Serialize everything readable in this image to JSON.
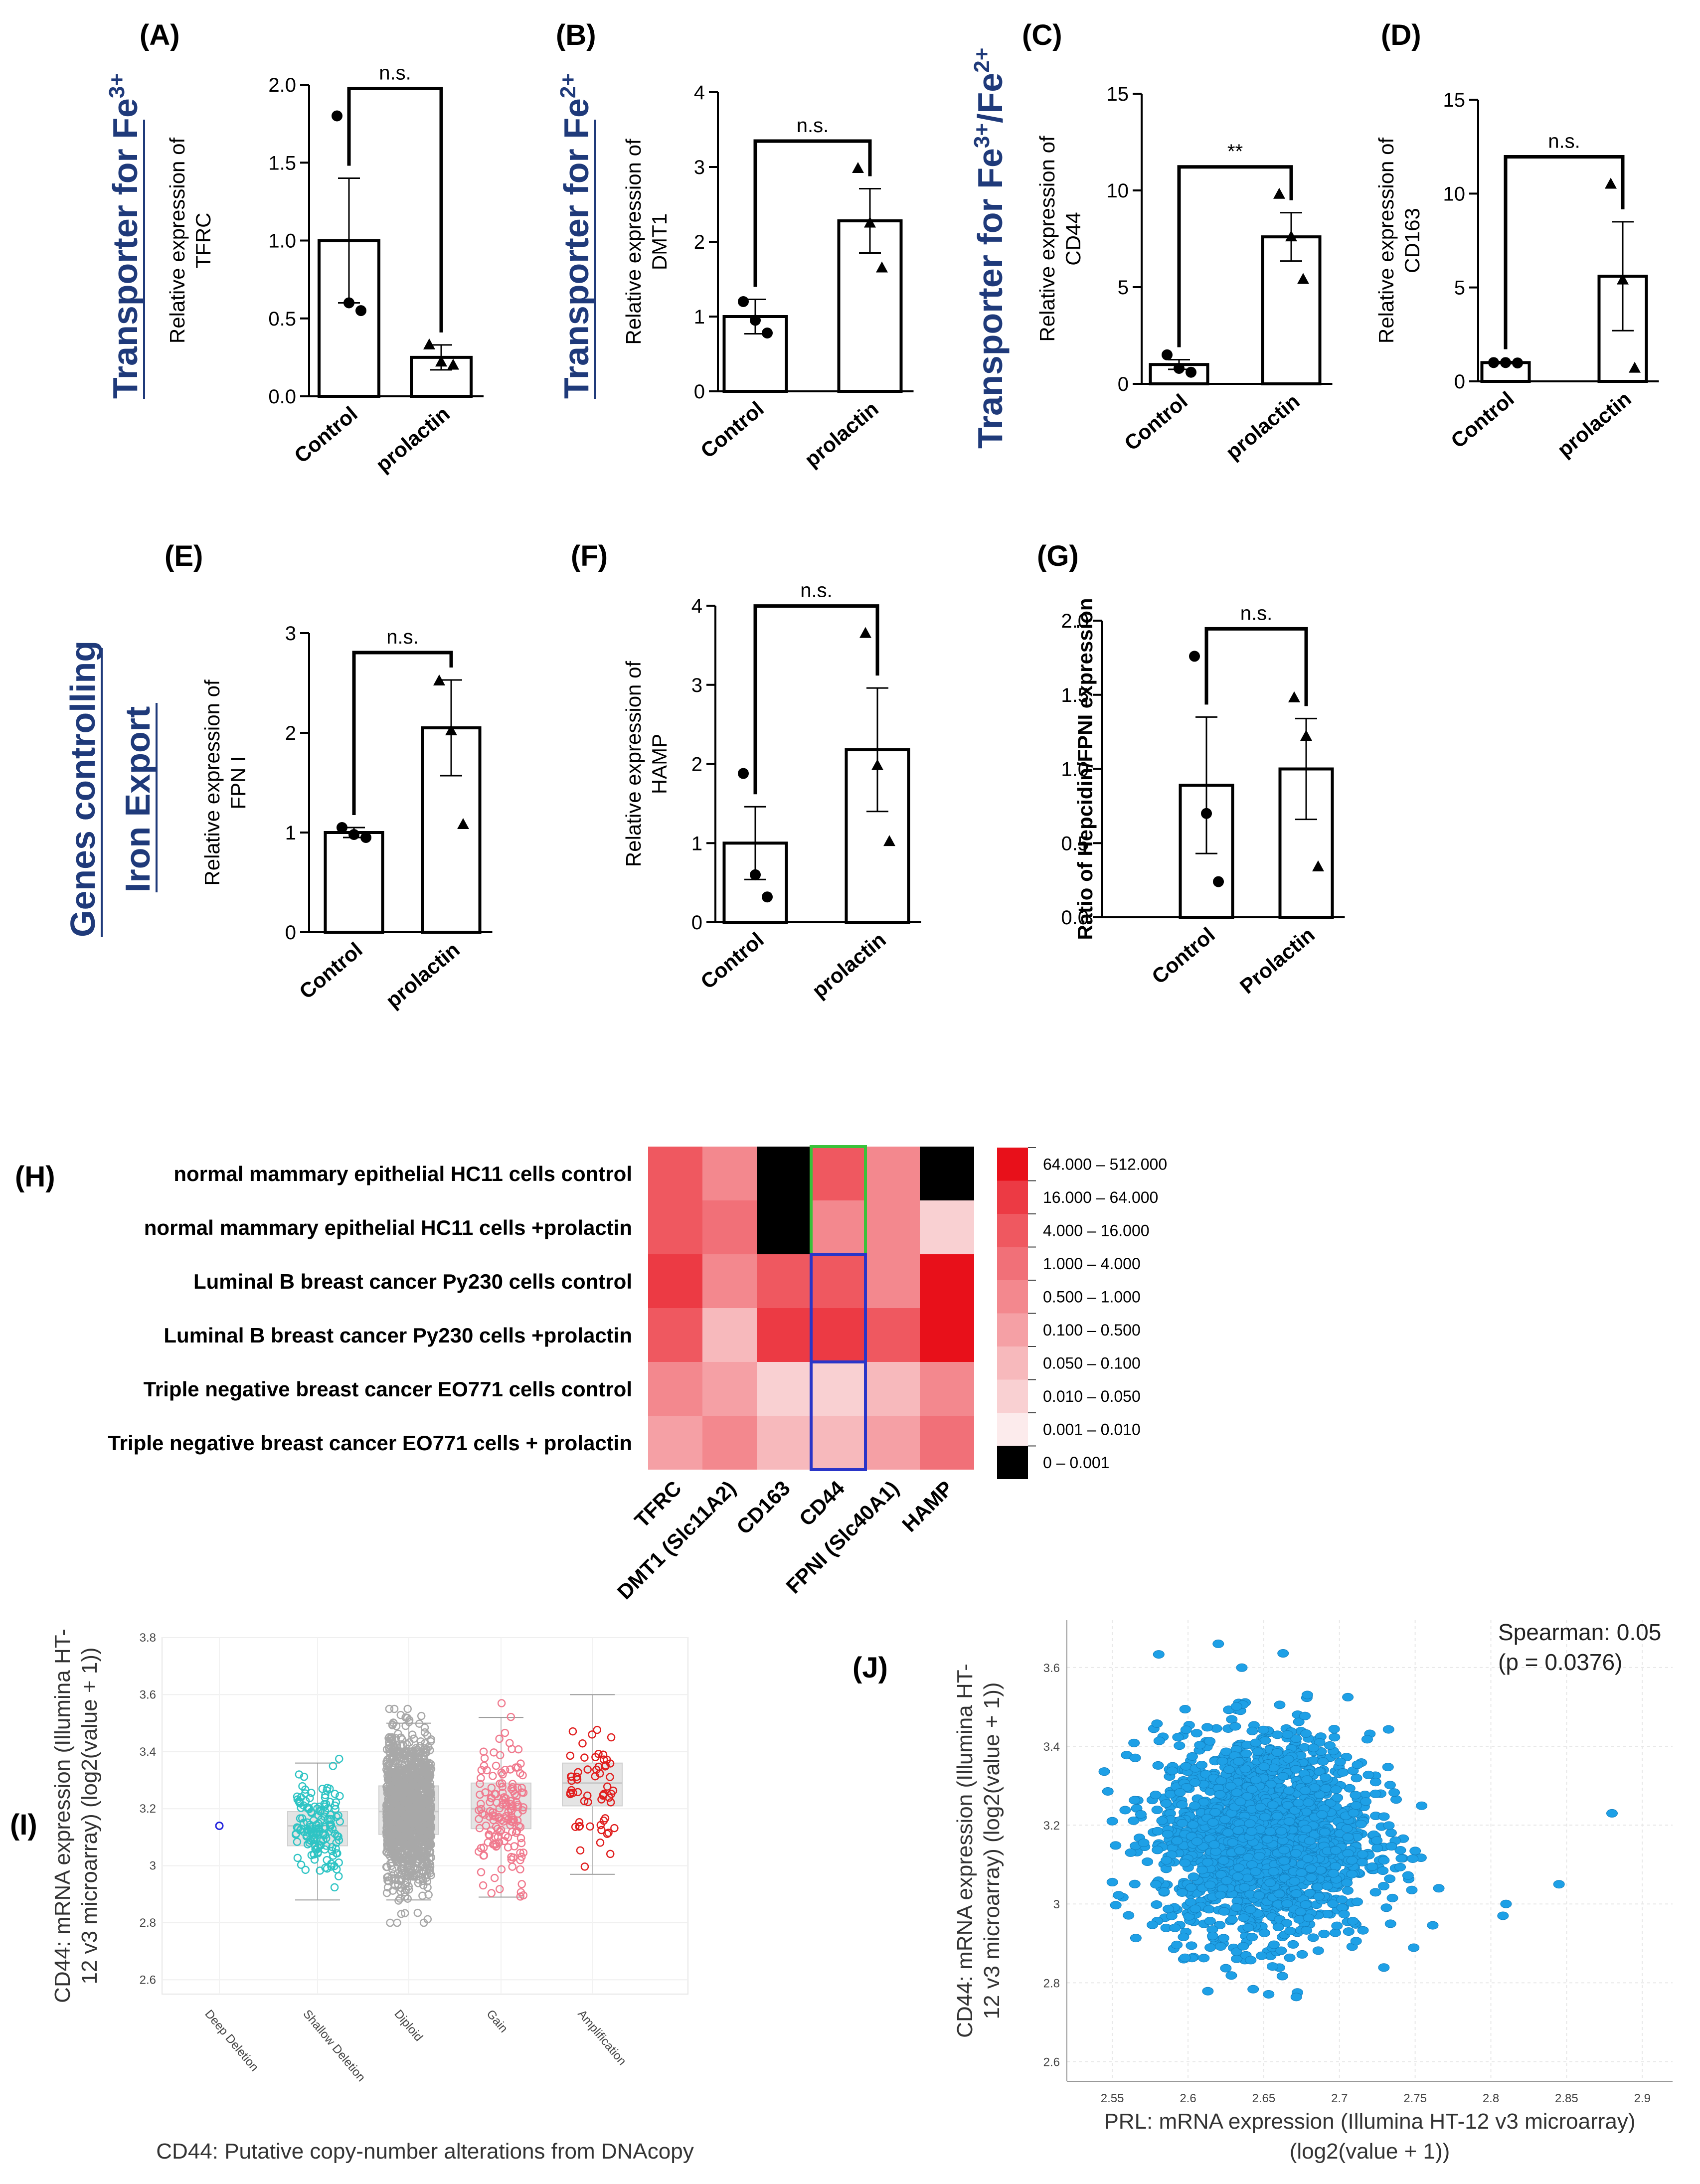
{
  "group_labels": {
    "fe3": "Transporter for Fe",
    "fe3_sup": "3+",
    "fe2": "Transporter for Fe",
    "fe2_sup": "2+",
    "fe3fe2": "Transporter for Fe",
    "fe3fe2_sup1": "3+",
    "fe3fe2_mid": "/Fe",
    "fe3fe2_sup2": "2+",
    "export_line1": "Genes controlling",
    "export_line2": "Iron Export"
  },
  "chart_data": [
    {
      "id": "A",
      "type": "bar",
      "panel_label": "(A)",
      "ylabel_line1": "Relative expression of",
      "ylabel_line2": "TFRC",
      "categories": [
        "Control",
        "prolactin"
      ],
      "values": [
        1.0,
        0.25
      ],
      "sem": [
        0.4,
        0.08
      ],
      "points": [
        [
          1.8,
          0.6,
          0.55
        ],
        [
          0.33,
          0.22,
          0.2
        ]
      ],
      "ylim": [
        0,
        2.0
      ],
      "yticks": [
        0.0,
        0.5,
        1.0,
        1.5,
        2.0
      ],
      "tick_labels": [
        "0.0",
        "0.5",
        "1.0",
        "1.5",
        "2.0"
      ],
      "significance": "n.s."
    },
    {
      "id": "B",
      "type": "bar",
      "panel_label": "(B)",
      "ylabel_line1": "Relative expression of",
      "ylabel_line2": "DMT1",
      "categories": [
        "Control",
        "prolactin"
      ],
      "values": [
        1.0,
        2.28
      ],
      "sem": [
        0.23,
        0.43
      ],
      "points": [
        [
          1.2,
          0.95,
          0.78
        ],
        [
          2.98,
          2.25,
          1.65
        ]
      ],
      "ylim": [
        0,
        4
      ],
      "yticks": [
        0,
        1,
        2,
        3,
        4
      ],
      "tick_labels": [
        "0",
        "1",
        "2",
        "3",
        "4"
      ],
      "significance": "n.s."
    },
    {
      "id": "C",
      "type": "bar",
      "panel_label": "(C)",
      "ylabel_line1": "Relative expression of",
      "ylabel_line2": "CD44",
      "categories": [
        "Control",
        "prolactin"
      ],
      "values": [
        1.0,
        7.6
      ],
      "sem": [
        0.25,
        1.25
      ],
      "points": [
        [
          1.5,
          0.8,
          0.6
        ],
        [
          9.8,
          7.6,
          5.4
        ]
      ],
      "ylim": [
        0,
        15
      ],
      "yticks": [
        0,
        5,
        10,
        15
      ],
      "tick_labels": [
        "0",
        "5",
        "10",
        "15"
      ],
      "significance": "**"
    },
    {
      "id": "D",
      "type": "bar",
      "panel_label": "(D)",
      "ylabel_line1": "Relative expression of",
      "ylabel_line2": "CD163",
      "categories": [
        "Control",
        "prolactin"
      ],
      "values": [
        1.0,
        5.6
      ],
      "sem": [
        0.05,
        2.9
      ],
      "points": [
        [
          1.0,
          1.0,
          0.98
        ],
        [
          10.5,
          5.4,
          0.7
        ]
      ],
      "ylim": [
        0,
        15
      ],
      "yticks": [
        0,
        5,
        10,
        15
      ],
      "tick_labels": [
        "0",
        "5",
        "10",
        "15"
      ],
      "significance": "n.s."
    },
    {
      "id": "E",
      "type": "bar",
      "panel_label": "(E)",
      "ylabel_line1": "Relative expression of",
      "ylabel_line2": "FPN I",
      "categories": [
        "Control",
        "prolactin"
      ],
      "values": [
        1.0,
        2.05
      ],
      "sem": [
        0.05,
        0.48
      ],
      "points": [
        [
          1.05,
          0.98,
          0.95
        ],
        [
          2.52,
          2.02,
          1.08
        ]
      ],
      "ylim": [
        0,
        3
      ],
      "yticks": [
        0,
        1,
        2,
        3
      ],
      "tick_labels": [
        "0",
        "1",
        "2",
        "3"
      ],
      "significance": "n.s."
    },
    {
      "id": "F",
      "type": "bar",
      "panel_label": "(F)",
      "ylabel_line1": "Relative expression of",
      "ylabel_line2": "HAMP",
      "categories": [
        "Control",
        "prolactin"
      ],
      "values": [
        1.0,
        2.18
      ],
      "sem": [
        0.46,
        0.78
      ],
      "points": [
        [
          1.88,
          0.6,
          0.32
        ],
        [
          3.65,
          1.98,
          1.02
        ]
      ],
      "ylim": [
        0,
        4
      ],
      "yticks": [
        0,
        1,
        2,
        3,
        4
      ],
      "tick_labels": [
        "0",
        "1",
        "2",
        "3",
        "4"
      ],
      "significance": "n.s."
    },
    {
      "id": "G",
      "type": "bar",
      "panel_label": "(G)",
      "ylabel_line1": "Ratio of Hepcidin/FPNI expression",
      "ylabel_line2": "",
      "categories": [
        "Control",
        "Prolactin"
      ],
      "values": [
        0.89,
        1.0
      ],
      "sem": [
        0.46,
        0.34
      ],
      "points": [
        [
          1.76,
          0.7,
          0.24
        ],
        [
          1.48,
          1.22,
          0.34
        ]
      ],
      "ylim": [
        0,
        2.0
      ],
      "yticks": [
        0.0,
        0.5,
        1.0,
        1.5,
        2.0
      ],
      "tick_labels": [
        "0.0",
        "0.5",
        "1.0",
        "1.5",
        "2.0"
      ],
      "significance": "n.s."
    },
    {
      "id": "H",
      "type": "heatmap",
      "panel_label": "(H)",
      "rows": [
        "normal mammary epithelial HC11 cells control",
        "normal mammary epithelial HC11 cells +prolactin",
        "Luminal B breast cancer Py230 cells control",
        "Luminal B breast cancer Py230 cells +prolactin",
        "Triple negative breast cancer EO771 cells control",
        "Triple negative breast cancer EO771 cells + prolactin"
      ],
      "columns": [
        "TFRC",
        "DMT1 (Slc11A2)",
        "CD163",
        "CD44",
        "FPNI (Slc40A1)",
        "HAMP"
      ],
      "bin_index": [
        [
          7,
          5,
          0,
          7,
          5,
          0
        ],
        [
          7,
          6,
          0,
          5,
          5,
          2
        ],
        [
          8,
          5,
          7,
          7,
          5,
          9
        ],
        [
          7,
          3,
          8,
          8,
          7,
          9
        ],
        [
          5,
          4,
          2,
          2,
          3,
          5
        ],
        [
          4,
          5,
          3,
          3,
          4,
          6
        ]
      ],
      "legend": [
        {
          "label": "64.000 – 512.000",
          "color": "#e8101a"
        },
        {
          "label": "16.000 – 64.000",
          "color": "#ec3a44"
        },
        {
          "label": "4.000 – 16.000",
          "color": "#ef5860"
        },
        {
          "label": "1.000 – 4.000",
          "color": "#f17078"
        },
        {
          "label": "0.500 – 1.000",
          "color": "#f3888e"
        },
        {
          "label": "0.100 – 0.500",
          "color": "#f5a0a5"
        },
        {
          "label": "0.050 – 0.100",
          "color": "#f7b9bc"
        },
        {
          "label": "0.010 – 0.050",
          "color": "#f9d0d2"
        },
        {
          "label": "0.001 – 0.010",
          "color": "#fcebec"
        },
        {
          "label": "0 – 0.001",
          "color": "#000000"
        }
      ],
      "highlight_colors": {
        "green": "#3ac23a",
        "blue": "#2a35c8"
      }
    },
    {
      "id": "I",
      "type": "scatter",
      "panel_label": "(I)",
      "xlabel": "CD44: Putative copy-number alterations from DNAcopy",
      "ylabel_line1": "CD44: mRNA expression (Illumina HT-",
      "ylabel_line2": "12 v3 microarray) (log2(value + 1))",
      "categories": [
        "Deep Deletion",
        "Shallow Deletion",
        "Diploid",
        "Gain",
        "Amplification"
      ],
      "colors": [
        "#2222dd",
        "#2ec4c4",
        "#a8a8a8",
        "#f07a8e",
        "#e01e1e"
      ],
      "box": [
        {
          "min": 3.14,
          "q1": 3.14,
          "median": 3.14,
          "q3": 3.14,
          "max": 3.14,
          "n": 1
        },
        {
          "min": 2.88,
          "q1": 3.07,
          "median": 3.14,
          "q3": 3.19,
          "max": 3.36,
          "n": 150
        },
        {
          "min": 2.88,
          "q1": 3.11,
          "median": 3.19,
          "q3": 3.28,
          "max": 3.5,
          "n": 1400
        },
        {
          "min": 2.89,
          "q1": 3.13,
          "median": 3.2,
          "q3": 3.29,
          "max": 3.52,
          "n": 150
        },
        {
          "min": 2.97,
          "q1": 3.21,
          "median": 3.29,
          "q3": 3.36,
          "max": 3.6,
          "n": 60
        }
      ],
      "ylim": [
        2.55,
        3.8
      ],
      "yticks": [
        2.6,
        2.8,
        3,
        3.2,
        3.4,
        3.6,
        3.8
      ],
      "tick_labels": [
        "2.6",
        "2.8",
        "3",
        "3.2",
        "3.4",
        "3.6",
        "3.8"
      ]
    },
    {
      "id": "J",
      "type": "scatter",
      "panel_label": "(J)",
      "xlabel_line1": "PRL: mRNA expression (Illumina HT-12 v3 microarray)",
      "xlabel_line2": "(log2(value + 1))",
      "ylabel_line1": "CD44: mRNA expression (Illumina HT-",
      "ylabel_line2": "12 v3 microarray) (log2(value + 1))",
      "annotation_line1": "Spearman: 0.05",
      "annotation_line2": "(p = 0.0376)",
      "point_color": "#1ea0e6",
      "cloud_center": [
        2.65,
        3.17
      ],
      "cloud_sd": [
        0.035,
        0.13
      ],
      "n_points": 1900,
      "outliers": [
        [
          2.88,
          3.23
        ],
        [
          2.845,
          3.05
        ],
        [
          2.81,
          3.0
        ],
        [
          2.808,
          2.97
        ],
        [
          2.55,
          3.21
        ],
        [
          2.62,
          3.66
        ]
      ],
      "xlim": [
        2.52,
        2.92
      ],
      "ylim": [
        2.55,
        3.72
      ],
      "xticks": [
        2.55,
        2.6,
        2.65,
        2.7,
        2.75,
        2.8,
        2.85,
        2.9
      ],
      "xtick_labels": [
        "2.55",
        "2.6",
        "2.65",
        "2.7",
        "2.75",
        "2.8",
        "2.85",
        "2.9"
      ],
      "yticks": [
        2.6,
        2.8,
        3,
        3.2,
        3.4,
        3.6
      ],
      "ytick_labels": [
        "2.6",
        "2.8",
        "3",
        "3.2",
        "3.4",
        "3.6"
      ]
    }
  ]
}
